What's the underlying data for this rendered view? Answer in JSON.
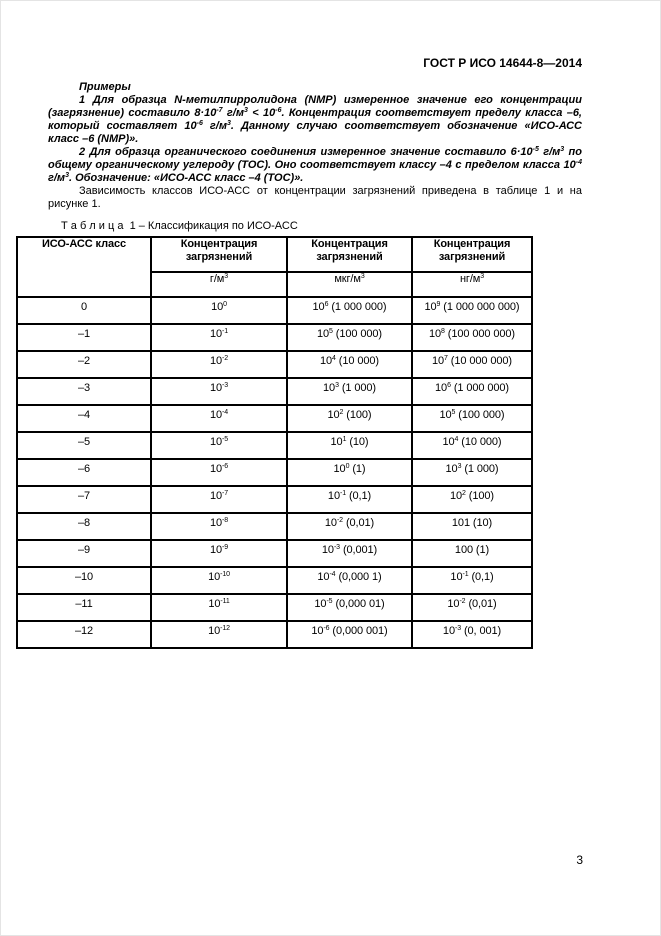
{
  "page": {
    "header": "ГОСТ Р ИСО 14644-8—2014",
    "page_number": "3"
  },
  "content": {
    "examples_heading": "Примеры",
    "example1": "1 Для образца N-метилпирролидона (NMP) измеренное значение его концентрации (загрязнение) составило 8·10^{-7} г/м^{3} < 10^{-6}. Концентрация соответствует пределу класса –6, который составляет 10^{-6} г/м^{3}. Данному случаю соответствует обозначение «ИСО-АСС класс –6 (NMP)».",
    "example2": "2 Для образца органического соединения измеренное значение составило 6·10^{-5} г/м^{3} по общему органическому углероду (ТОС). Оно соответствует классу –4 с пределом класса 10^{-4} г/м^{3}. Обозначение: «ИСО-АСС класс –4 (ТОС)».",
    "dependency_note": "Зависимость классов ИСО-АСС от концентрации загрязнений приведена в таблице 1 и на рисунке 1."
  },
  "table": {
    "caption": "Т а б л и ц а  1 – Классификация по ИСО-АСС",
    "class_column_header": "ИСО-АСС класс",
    "concentration_headers": [
      "Концентрация загрязнений",
      "Концентрация загрязнений",
      "Концентрация загрязнений"
    ],
    "units": [
      "г/м^{3}",
      "мкг/м^{3}",
      "нг/м^{3}"
    ],
    "rows": [
      [
        "0",
        "10^{0}",
        "10^{6} (1 000 000)",
        "10^{9} (1 000 000 000)"
      ],
      [
        "–1",
        "10^{-1}",
        "10^{5} (100 000)",
        "10^{8} (100 000 000)"
      ],
      [
        "–2",
        "10^{-2}",
        "10^{4} (10 000)",
        "10^{7} (10 000 000)"
      ],
      [
        "–3",
        "10^{-3}",
        "10^{3} (1 000)",
        "10^{6} (1 000 000)"
      ],
      [
        "–4",
        "10^{-4}",
        "10^{2} (100)",
        "10^{5} (100 000)"
      ],
      [
        "–5",
        "10^{-5}",
        "10^{1} (10)",
        "10^{4} (10 000)"
      ],
      [
        "–6",
        "10^{-6}",
        "10^{0} (1)",
        "10^{3} (1 000)"
      ],
      [
        "–7",
        "10^{-7}",
        "10^{-1} (0,1)",
        "10^{2} (100)"
      ],
      [
        "–8",
        "10^{-8}",
        "10^{-2} (0,01)",
        "101 (10)"
      ],
      [
        "–9",
        "10^{-9}",
        "10^{-3} (0,001)",
        "100 (1)"
      ],
      [
        "–10",
        "10^{-10}",
        "10^{-4} (0,000 1)",
        "10^{-1} (0,1)"
      ],
      [
        "–11",
        "10^{-11}",
        "10^{-5} (0,000 01)",
        "10^{-2} (0,01)"
      ],
      [
        "–12",
        "10^{-12}",
        "10^{-6} (0,000 001)",
        "10^{-3} (0, 001)"
      ]
    ]
  }
}
